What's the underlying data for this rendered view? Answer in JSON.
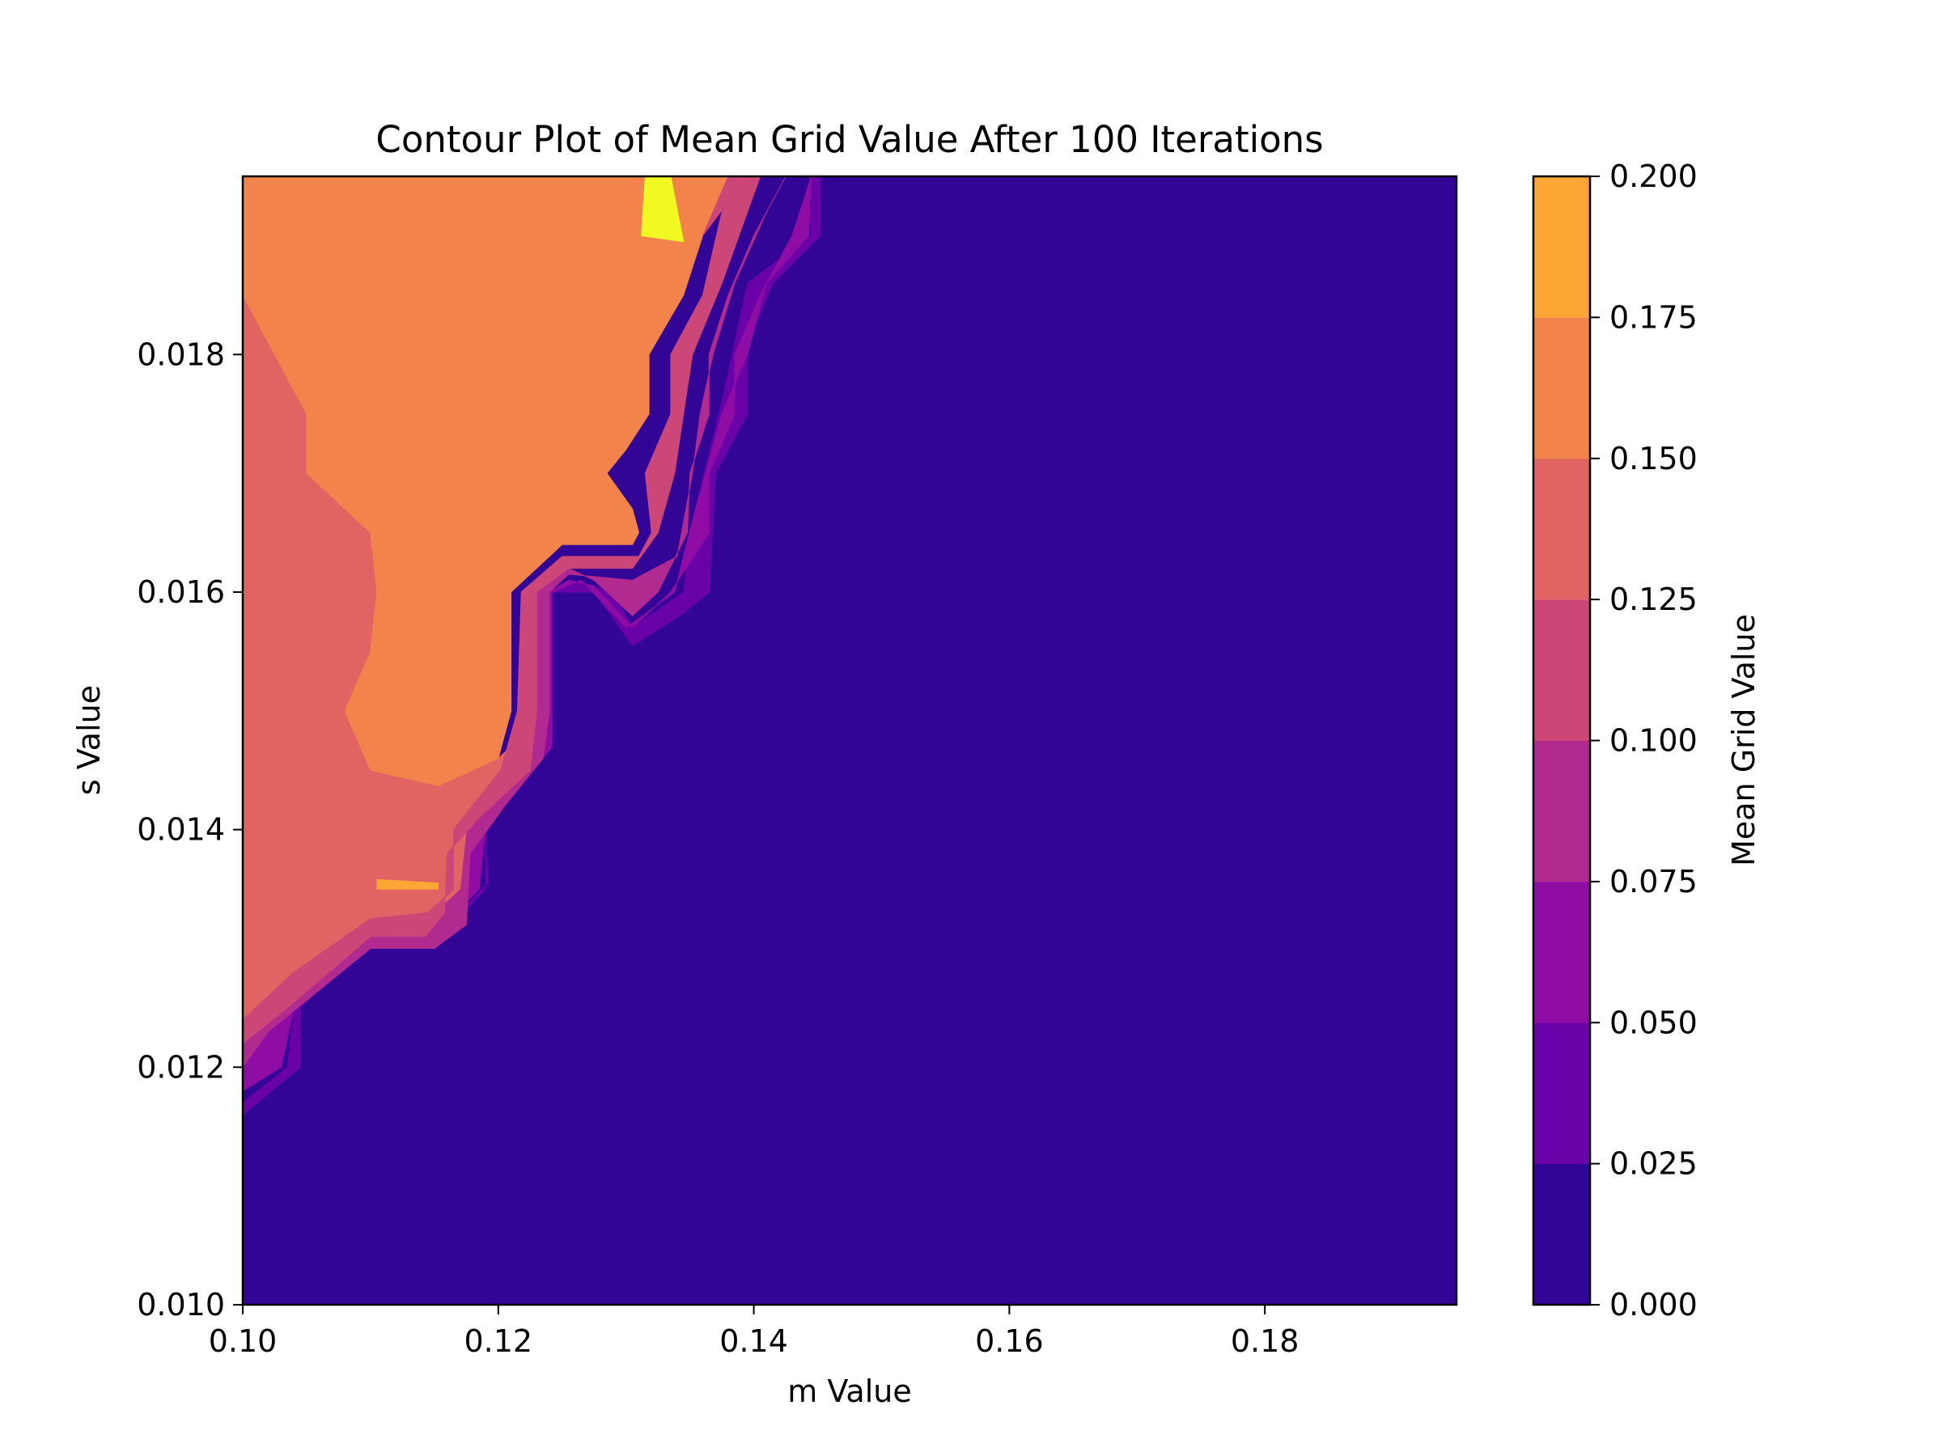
{
  "chart_data": {
    "type": "contour",
    "title": "Contour Plot of Mean Grid Value After 100 Iterations",
    "xlabel": "m Value",
    "ylabel": "s Value",
    "colorbar_label": "Mean Grid Value",
    "xlim": [
      0.1,
      0.195
    ],
    "ylim": [
      0.01,
      0.0195
    ],
    "xticks": [
      0.1,
      0.12,
      0.14,
      0.16,
      0.18
    ],
    "xtick_labels": [
      "0.10",
      "0.12",
      "0.14",
      "0.16",
      "0.18"
    ],
    "yticks": [
      0.01,
      0.012,
      0.014,
      0.016,
      0.018
    ],
    "ytick_labels": [
      "0.010",
      "0.012",
      "0.014",
      "0.016",
      "0.018"
    ],
    "levels": [
      0.0,
      0.025,
      0.05,
      0.075,
      0.1,
      0.125,
      0.15,
      0.175,
      0.2
    ],
    "level_labels": [
      "0.000",
      "0.025",
      "0.050",
      "0.075",
      "0.100",
      "0.125",
      "0.150",
      "0.175",
      "0.200"
    ],
    "level_colors": [
      "#330597",
      "#6a00a8",
      "#8f0da4",
      "#b12a90",
      "#cc4778",
      "#e16462",
      "#f2844b",
      "#fca636",
      "#f0f921"
    ],
    "colormap": "plasma",
    "regions": [
      {
        "level_index": 5,
        "points": [
          [
            0.1,
            0.0185
          ],
          [
            0.1025,
            0.018
          ],
          [
            0.105,
            0.0175
          ],
          [
            0.105,
            0.017
          ],
          [
            0.11,
            0.0165
          ],
          [
            0.1105,
            0.016
          ],
          [
            0.11,
            0.0155
          ],
          [
            0.108,
            0.015
          ],
          [
            0.11,
            0.0145
          ],
          [
            0.1153,
            0.01437
          ],
          [
            0.12,
            0.0146
          ],
          [
            0.122,
            0.0148
          ],
          [
            0.1215,
            0.0145
          ],
          [
            0.119,
            0.0142
          ],
          [
            0.1175,
            0.014
          ],
          [
            0.117,
            0.0135
          ],
          [
            0.115,
            0.0133
          ],
          [
            0.11,
            0.0132
          ],
          [
            0.105,
            0.0128
          ],
          [
            0.1,
            0.0124
          ]
        ]
      },
      {
        "level_index": 6,
        "points": [
          [
            0.1,
            0.0195
          ],
          [
            0.138,
            0.0195
          ],
          [
            0.136,
            0.019
          ],
          [
            0.1345,
            0.0185
          ],
          [
            0.1318,
            0.018
          ],
          [
            0.1318,
            0.0175
          ],
          [
            0.13,
            0.0172
          ],
          [
            0.1285,
            0.017
          ],
          [
            0.1305,
            0.0167
          ],
          [
            0.131,
            0.0165
          ],
          [
            0.1305,
            0.0164
          ],
          [
            0.125,
            0.0164
          ],
          [
            0.121,
            0.016
          ],
          [
            0.121,
            0.015
          ],
          [
            0.12,
            0.0146
          ],
          [
            0.1153,
            0.01437
          ],
          [
            0.11,
            0.0145
          ],
          [
            0.108,
            0.015
          ],
          [
            0.11,
            0.0155
          ],
          [
            0.1105,
            0.016
          ],
          [
            0.11,
            0.0165
          ],
          [
            0.105,
            0.017
          ],
          [
            0.105,
            0.0175
          ],
          [
            0.1025,
            0.018
          ],
          [
            0.1,
            0.0185
          ]
        ]
      },
      {
        "level_index": 4,
        "points": [
          [
            0.136,
            0.019
          ],
          [
            0.138,
            0.0195
          ],
          [
            0.1395,
            0.0195
          ],
          [
            0.1375,
            0.0192
          ],
          [
            0.136,
            0.0185
          ],
          [
            0.1335,
            0.018
          ],
          [
            0.1335,
            0.0175
          ],
          [
            0.1315,
            0.017
          ],
          [
            0.132,
            0.0165
          ],
          [
            0.131,
            0.0163
          ],
          [
            0.125,
            0.0163
          ],
          [
            0.1218,
            0.016
          ],
          [
            0.1215,
            0.015
          ],
          [
            0.1202,
            0.0145
          ],
          [
            0.1165,
            0.014
          ],
          [
            0.1165,
            0.0135
          ],
          [
            0.1145,
            0.0133
          ],
          [
            0.11,
            0.01325
          ],
          [
            0.104,
            0.0128
          ],
          [
            0.1,
            0.0124
          ],
          [
            0.1,
            0.0122
          ],
          [
            0.1035,
            0.0125
          ],
          [
            0.11,
            0.0131
          ],
          [
            0.1143,
            0.0131
          ],
          [
            0.1158,
            0.0133
          ],
          [
            0.116,
            0.0138
          ],
          [
            0.1185,
            0.0141
          ],
          [
            0.1225,
            0.0145
          ],
          [
            0.123,
            0.015
          ],
          [
            0.123,
            0.016
          ],
          [
            0.1255,
            0.0162
          ],
          [
            0.1305,
            0.0162
          ],
          [
            0.1325,
            0.0165
          ],
          [
            0.1338,
            0.017
          ],
          [
            0.1345,
            0.0175
          ],
          [
            0.1352,
            0.018
          ],
          [
            0.1375,
            0.0186
          ],
          [
            0.1395,
            0.0192
          ],
          [
            0.1405,
            0.0195
          ],
          [
            0.1395,
            0.0195
          ]
        ]
      },
      {
        "level_index": 8,
        "points": [
          [
            0.1315,
            0.0195
          ],
          [
            0.1335,
            0.0195
          ],
          [
            0.1345,
            0.01895
          ],
          [
            0.1312,
            0.019
          ]
        ]
      },
      {
        "level_index": 7,
        "points": [
          [
            0.1105,
            0.0135
          ],
          [
            0.1153,
            0.0135
          ],
          [
            0.1153,
            0.01355
          ],
          [
            0.1105,
            0.01358
          ]
        ]
      }
    ]
  }
}
